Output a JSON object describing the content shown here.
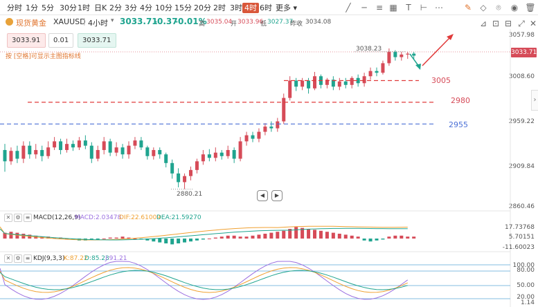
{
  "toolbar": {
    "timeframes": [
      "分时",
      "1分",
      "5分",
      "30分",
      "1时",
      "日K",
      "2分",
      "3分",
      "4分",
      "10分",
      "15分",
      "20分",
      "2时",
      "3时",
      "4时",
      "6时"
    ],
    "active": "4时",
    "more_label": "更多"
  },
  "header": {
    "symbol_cn": "现货黄金",
    "symbol": "XAUUSD",
    "interval": "4小时",
    "last_price": "3033.71",
    "change": "-0.37",
    "change_pct": "-0.01%",
    "high_label": "高",
    "high_value": "3035.04",
    "open_label": "开",
    "open_value": "3033.96",
    "low_label": "低",
    "low_value": "3027.37",
    "prev_close_label": "昨收",
    "prev_close_value": "3034.08"
  },
  "order_boxes": {
    "bid": "3033.91",
    "qty": "0.01",
    "ask": "3033.71"
  },
  "hint_text": "按 [空格]可显示主图指标线",
  "price_axis": {
    "labels": [
      "3057.98",
      "3008.60",
      "2959.22",
      "2909.84",
      "2860.46"
    ],
    "current_price_tag": "3033.71"
  },
  "annotations": {
    "high_marker": "3038.23",
    "low_marker": "2880.21",
    "level_3005": "3005",
    "level_2980": "2980",
    "level_2955": "2955"
  },
  "macd": {
    "title": "MACD(12,26,9)",
    "macd_value": "MACD:2.03478",
    "dif_value": "DIF:22.61009",
    "dea_value": "DEA:21.59270",
    "axis": [
      "17.73768",
      "5.70151",
      "-11.60023"
    ]
  },
  "kdj": {
    "title": "KDJ(9,3,3)",
    "k_value": "K:87.22",
    "d_value": "D:85.23",
    "j_value": "J:91.21",
    "axis": [
      "100.00",
      "80.00",
      "50.00",
      "20.00",
      "1.14"
    ]
  },
  "colors": {
    "up": "#d64b58",
    "down": "#1fa48f",
    "accent": "#d9573a",
    "dashed_red": "#e03a3a",
    "dashed_blue": "#4a6fd6",
    "dif_line": "#9b6fe0",
    "dea_line": "#f0a030"
  }
}
